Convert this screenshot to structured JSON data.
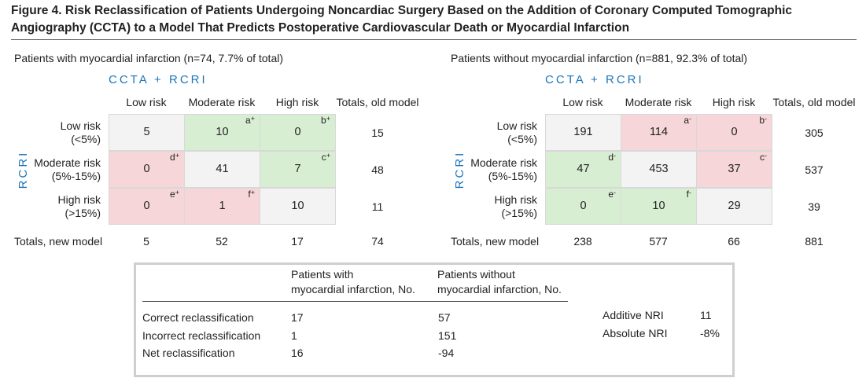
{
  "title": "Figure 4. Risk Reclassification of Patients Undergoing Noncardiac Surgery Based on the Addition of Coronary Computed Tomographic Angiography (CCTA) to a Model That Predicts Postoperative Cardiovascular Death or Myocardial Infarction",
  "panels": [
    {
      "heading": "Patients with myocardial infarction (n=74, 7.7% of total)",
      "column_group": "CCTA + RCRI",
      "row_group": "RCRI",
      "columns": [
        "Low risk",
        "Moderate risk",
        "High risk",
        "Totals, old model"
      ],
      "rows": [
        {
          "label": [
            "Low risk",
            "(<5%)"
          ],
          "cells": [
            {
              "value": 5
            },
            {
              "value": 10,
              "note": {
                "letter": "a",
                "sign": "+"
              }
            },
            {
              "value": 0,
              "note": {
                "letter": "b",
                "sign": "+"
              }
            }
          ],
          "total": 15
        },
        {
          "label": [
            "Moderate risk",
            "(5%-15%)"
          ],
          "cells": [
            {
              "value": 0,
              "note": {
                "letter": "d",
                "sign": "+"
              }
            },
            {
              "value": 41
            },
            {
              "value": 7,
              "note": {
                "letter": "c",
                "sign": "+"
              }
            }
          ],
          "total": 48
        },
        {
          "label": [
            "High risk",
            "(>15%)"
          ],
          "cells": [
            {
              "value": 0,
              "note": {
                "letter": "e",
                "sign": "+"
              }
            },
            {
              "value": 1,
              "note": {
                "letter": "f",
                "sign": "+"
              }
            },
            {
              "value": 10
            }
          ],
          "total": 11
        }
      ],
      "totals_label": "Totals, new model",
      "totals": [
        5,
        52,
        17,
        74
      ]
    },
    {
      "heading": "Patients without myocardial infarction (n=881, 92.3% of total)",
      "column_group": "CCTA + RCRI",
      "row_group": "RCRI",
      "columns": [
        "Low risk",
        "Moderate risk",
        "High risk",
        "Totals, old model"
      ],
      "rows": [
        {
          "label": [
            "Low risk",
            "(<5%)"
          ],
          "cells": [
            {
              "value": 191
            },
            {
              "value": 114,
              "note": {
                "letter": "a",
                "sign": "-"
              }
            },
            {
              "value": 0,
              "note": {
                "letter": "b",
                "sign": "-"
              }
            }
          ],
          "total": 305
        },
        {
          "label": [
            "Moderate risk",
            "(5%-15%)"
          ],
          "cells": [
            {
              "value": 47,
              "note": {
                "letter": "d",
                "sign": "-"
              }
            },
            {
              "value": 453
            },
            {
              "value": 37,
              "note": {
                "letter": "c",
                "sign": "-"
              }
            }
          ],
          "total": 537
        },
        {
          "label": [
            "High risk",
            "(>15%)"
          ],
          "cells": [
            {
              "value": 0,
              "note": {
                "letter": "e",
                "sign": "-"
              }
            },
            {
              "value": 10,
              "note": {
                "letter": "f",
                "sign": "-"
              }
            },
            {
              "value": 29
            }
          ],
          "total": 39
        }
      ],
      "totals_label": "Totals, new model",
      "totals": [
        238,
        577,
        66,
        881
      ]
    }
  ],
  "summary": {
    "columns": [
      [
        "Patients with",
        "myocardial infarction, No."
      ],
      [
        "Patients without",
        "myocardial infarction, No."
      ]
    ],
    "rows": [
      {
        "label": "Correct reclassification",
        "values": [
          17,
          57
        ]
      },
      {
        "label": "Incorrect reclassification",
        "values": [
          1,
          151
        ]
      },
      {
        "label": "Net reclassification",
        "values": [
          16,
          -94
        ]
      }
    ],
    "nri": [
      {
        "label": "Additive NRI",
        "value": 11
      },
      {
        "label": "Absolute NRI",
        "value": "-8%"
      }
    ]
  }
}
